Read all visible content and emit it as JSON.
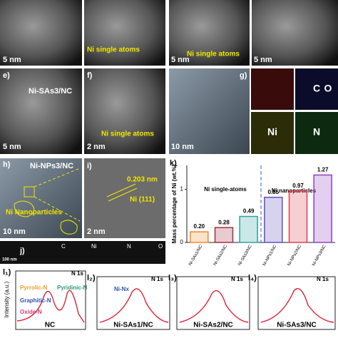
{
  "panels": {
    "a": {
      "scale": "5 nm"
    },
    "b": {
      "annotation": "Ni single atoms"
    },
    "c": {
      "scale": "5 nm",
      "annotation": "Ni single atoms"
    },
    "d": {
      "scale": "5 nm"
    },
    "e": {
      "label": "e)",
      "sample": "Ni-SAs3/NC",
      "scale": "5 nm"
    },
    "f": {
      "label": "f)",
      "annotation": "Ni single atoms",
      "scale": "2 nm"
    },
    "g": {
      "label": "g)",
      "scale": "10 nm",
      "maps": [
        "C",
        "O",
        "Ni",
        "N"
      ]
    },
    "h": {
      "label": "h)",
      "sample": "Ni-NPs3/NC",
      "annotation": "Ni Nanoparticles",
      "scale": "10 nm"
    },
    "i": {
      "label": "i)",
      "spacing": "0.203 nm",
      "plane": "Ni (111)",
      "scale": "2 nm"
    },
    "j": {
      "label": "j)",
      "scale": "100 nm",
      "maps": [
        "C",
        "Ni",
        "N",
        "O"
      ]
    },
    "l": {
      "ylabel": "Intensity (a.u.)",
      "items": [
        {
          "label": "l₁)",
          "level": "N 1s",
          "sample": "NC",
          "components": [
            "Pyrrolic-N",
            "Pyridinic-N",
            "Graphitic-N",
            "Oxide-N"
          ]
        },
        {
          "label": "l₂)",
          "level": "N 1s",
          "sample": "Ni-SAs1/NC",
          "components": [
            "Ni-Nx"
          ]
        },
        {
          "label": "l₃)",
          "level": "N 1s",
          "sample": "Ni-SAs2/NC"
        },
        {
          "label": "l₄)",
          "level": "N 1s",
          "sample": "Ni-SAs3/NC"
        }
      ]
    }
  },
  "chart_data": {
    "type": "bar",
    "label": "k)",
    "ylabel": "Mass percentage of Ni (wt.%)",
    "categories": [
      "Ni-SAs1/NC",
      "Ni-SAs2/NC",
      "Ni-SAs3/NC",
      "Ni-NPs1/NC",
      "Ni-NPs2/NC",
      "Ni-NPs3/NC"
    ],
    "values": [
      0.2,
      0.28,
      0.49,
      0.85,
      0.97,
      1.27
    ],
    "value_labels": [
      "0.20",
      "0.28",
      "0.49",
      "0.85",
      "0.97",
      "1.27"
    ],
    "colors": [
      "#f08a30",
      "#a03040",
      "#30a0a0",
      "#6050c0",
      "#e04050",
      "#9040c0"
    ],
    "annotations": [
      "Ni single-atoms",
      "Ni nanoparticles"
    ],
    "ylim": [
      0,
      1.45
    ],
    "yticks": [
      0,
      1
    ]
  }
}
